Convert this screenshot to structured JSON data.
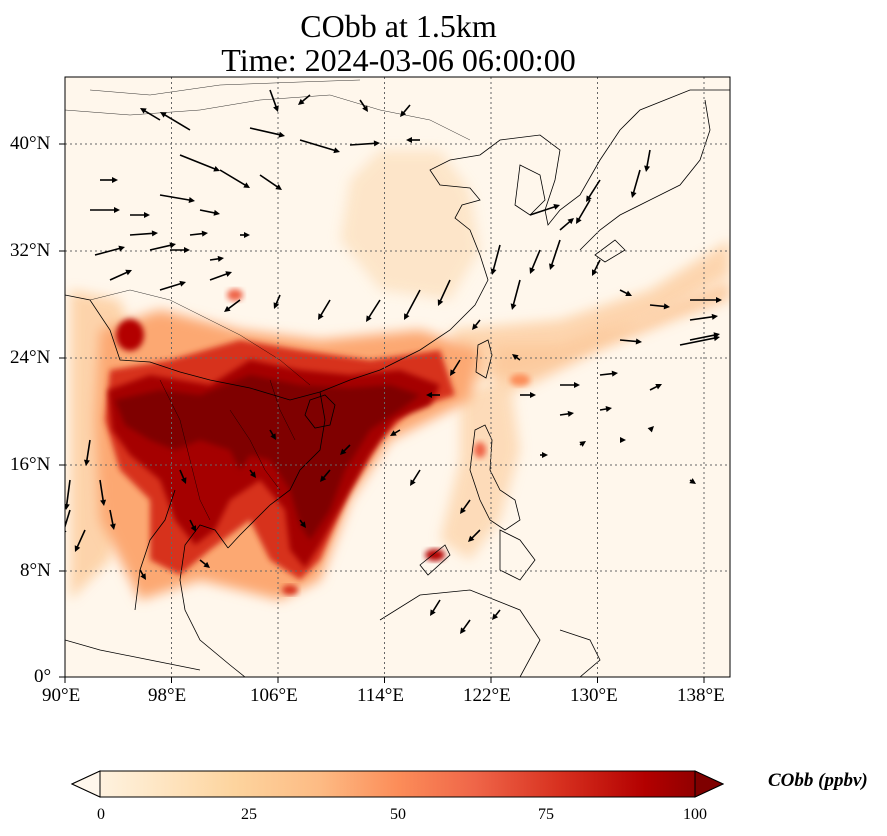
{
  "title_line1": "CObb at 1.5km",
  "title_line2": "Time: 2024-03-06 06:00:00",
  "lat_ticks": [
    "0°",
    "8°N",
    "16°N",
    "24°N",
    "32°N",
    "40°N"
  ],
  "lon_ticks": [
    "90°E",
    "98°E",
    "106°E",
    "114°E",
    "122°E",
    "130°E",
    "138°E"
  ],
  "colorbar": {
    "label": "CObb (ppbv)",
    "ticks": [
      "0",
      "25",
      "50",
      "75",
      "100"
    ],
    "range": [
      0,
      100
    ],
    "colormap": "OrRd",
    "extend": "both"
  },
  "map_extent": {
    "lon": [
      90,
      140
    ],
    "lat": [
      0,
      45
    ]
  },
  "colors": {
    "low": "#fff7ec",
    "mid": "#fc8d59",
    "high": "#7f0000"
  },
  "wind_vectors": "black arrows",
  "gridlines": "dotted"
}
